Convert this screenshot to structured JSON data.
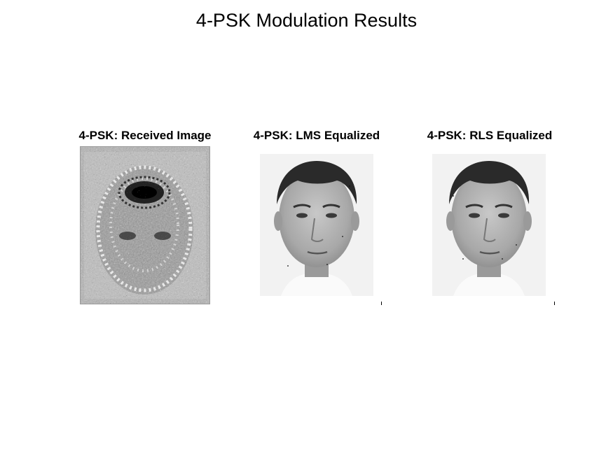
{
  "figure": {
    "title": "4-PSK Modulation Results"
  },
  "panels": [
    {
      "title": "4-PSK: Received Image",
      "content": "noisy-face-image"
    },
    {
      "title": "4-PSK: LMS Equalized",
      "content": "face-image"
    },
    {
      "title": "4-PSK: RLS Equalized",
      "content": "face-image"
    }
  ]
}
